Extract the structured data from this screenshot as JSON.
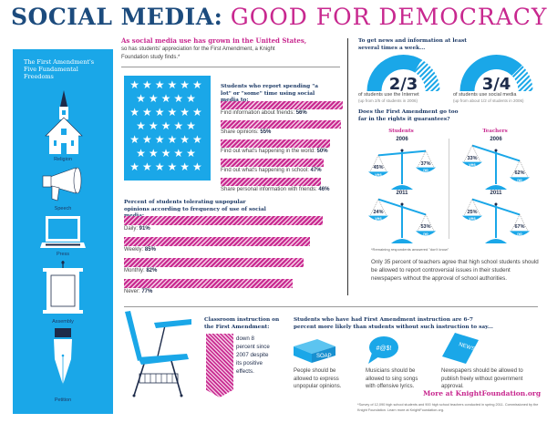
{
  "header": {
    "title_part1": "SOCIAL MEDIA:",
    "title_part2": "GOOD FOR DEMOCRACY?"
  },
  "colors": {
    "navy": "#1c4b7d",
    "magenta": "#c8288f",
    "sky_blue": "#1aa7e8"
  },
  "freedoms": {
    "heading": "The First Amendment's Five Fundamental Freedoms",
    "items": [
      {
        "label": "Religion",
        "icon": "church-icon"
      },
      {
        "label": "Speech",
        "icon": "megaphone-icon"
      },
      {
        "label": "Press",
        "icon": "laptop-icon"
      },
      {
        "label": "Assembly",
        "icon": "podium-icon"
      },
      {
        "label": "Petition",
        "icon": "fountain-pen-icon"
      }
    ]
  },
  "intro": {
    "headline": "As social media use has grown in the United States,",
    "subline": "so has students' appreciation for the First Amendment, a Knight Foundation study finds.*"
  },
  "usage": {
    "heading": "Students who report spending \"a lot\" or \"some\" time using social media to:",
    "items": [
      {
        "label": "Find information about friends:",
        "value": "56%",
        "pct": 56
      },
      {
        "label": "Share opinions:",
        "value": "55%",
        "pct": 55
      },
      {
        "label": "Find out what's happening in the world:",
        "value": "50%",
        "pct": 50
      },
      {
        "label": "Find out what's happening in school:",
        "value": "47%",
        "pct": 47
      },
      {
        "label": "Share personal information with friends:",
        "value": "46%",
        "pct": 46
      }
    ]
  },
  "tolerance": {
    "heading": "Percent of students tolerating unpopular opinions according to frequency of use of social media:",
    "items": [
      {
        "label": "Daily:",
        "value": "91%",
        "pct": 91
      },
      {
        "label": "Weekly:",
        "value": "85%",
        "pct": 85
      },
      {
        "label": "Monthly:",
        "value": "82%",
        "pct": 82
      },
      {
        "label": "Never:",
        "value": "77%",
        "pct": 77
      }
    ]
  },
  "news": {
    "heading": "To get news and information at least several times a week...",
    "gauges": [
      {
        "fraction": "2/3",
        "value": 0.667,
        "caption": "of students use the Internet",
        "sub": "(up from 2/5 of students in 2006)"
      },
      {
        "fraction": "3/4",
        "value": 0.75,
        "caption": "of students use social media",
        "sub": "(up from about 1/2 of students in 2006)"
      }
    ]
  },
  "too_far": {
    "heading": "Does the First Amendment go too far in the rights it guarantees?",
    "groups": [
      {
        "name": "Students",
        "years": [
          {
            "year": "2006",
            "yes": "45%",
            "no": "37%"
          },
          {
            "year": "2011",
            "yes": "24%",
            "no": "53%"
          }
        ]
      },
      {
        "name": "Teachers",
        "years": [
          {
            "year": "2006",
            "yes": "33%",
            "no": "62%"
          },
          {
            "year": "2011",
            "yes": "25%",
            "no": "67%"
          }
        ]
      }
    ],
    "yes_label": "yes",
    "no_label": "no",
    "footnote": "*Remaining respondents answered \"don't know\"",
    "note": "Only 35 percent of teachers agree that high school students should be allowed to report controversial issues in their student newspapers without the approval of school authorities."
  },
  "classroom": {
    "heading": "Classroom instruction on the First Amendment:",
    "text": "down 8 percent since 2007 despite its positive effects."
  },
  "instruction": {
    "heading": "Students who have had First Amendment instruction are 6-7 percent more likely than students without such instruction to say...",
    "items": [
      {
        "icon": "soapbox-icon",
        "icon_text": "SOAP",
        "text": "People should be allowed to express unpopular opinions."
      },
      {
        "icon": "speech-bubble-icon",
        "icon_text": "#@$!",
        "text": "Musicians should be allowed to sing songs with offensive lyrics."
      },
      {
        "icon": "newspaper-icon",
        "icon_text": "NEWS",
        "text": "Newspapers should be allowed to publish freely without government approval."
      }
    ]
  },
  "footer": {
    "link": "More at KnightFoundation.org",
    "source": "*Survey of 12,090 high school students and 900 high school teachers conducted in spring 2011. Commissioned by the Knight Foundation. Learn more at KnightFoundation.org."
  }
}
